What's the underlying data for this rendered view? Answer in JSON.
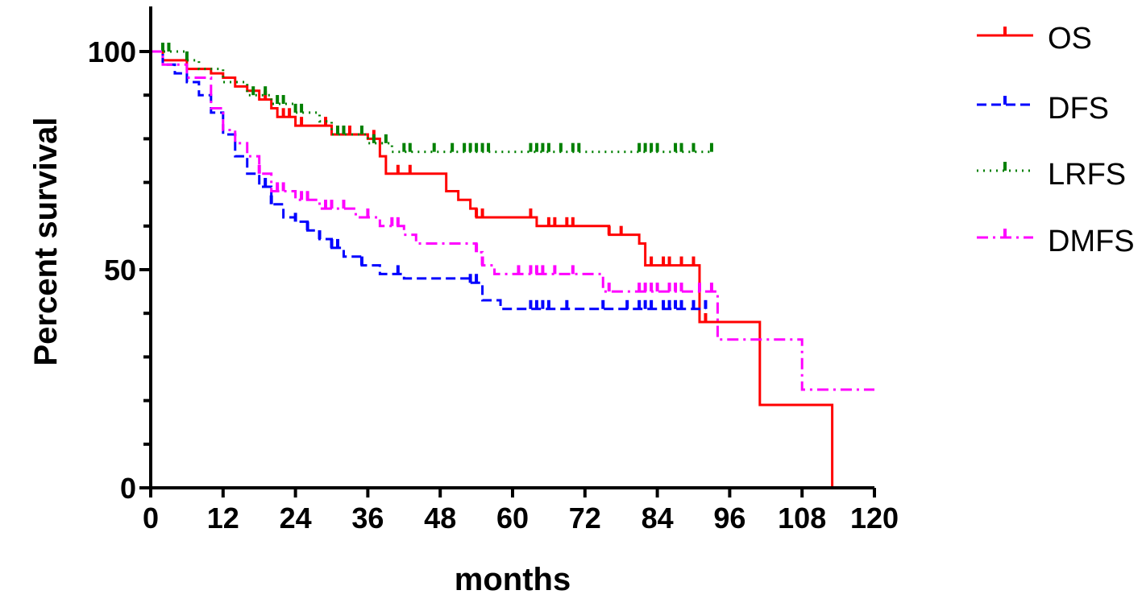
{
  "chart_data": {
    "type": "line",
    "subtype": "kaplan-meier",
    "title": "",
    "xlabel": "months",
    "ylabel": "Percent survival",
    "xlim": [
      0,
      120
    ],
    "ylim": [
      0,
      100
    ],
    "xticks": [
      0,
      12,
      24,
      36,
      48,
      60,
      72,
      84,
      96,
      108,
      120
    ],
    "yticks": [
      0,
      50,
      100
    ],
    "grid": false,
    "legend_position": "top-right",
    "series": [
      {
        "name": "OS",
        "color": "#ff0000",
        "style": "solid",
        "steps": [
          [
            0,
            100
          ],
          [
            2,
            98
          ],
          [
            6,
            96
          ],
          [
            10,
            95
          ],
          [
            12,
            94
          ],
          [
            14,
            92
          ],
          [
            16,
            91
          ],
          [
            18,
            89
          ],
          [
            20,
            87
          ],
          [
            21,
            85
          ],
          [
            24,
            83
          ],
          [
            30,
            81
          ],
          [
            36,
            80
          ],
          [
            38,
            76
          ],
          [
            39,
            72
          ],
          [
            48,
            72
          ],
          [
            49,
            68
          ],
          [
            51,
            66
          ],
          [
            53,
            64
          ],
          [
            54,
            62
          ],
          [
            63,
            62
          ],
          [
            64,
            60
          ],
          [
            75,
            60
          ],
          [
            76,
            58
          ],
          [
            81,
            56
          ],
          [
            82,
            51
          ],
          [
            91,
            51
          ],
          [
            91,
            38
          ],
          [
            101,
            38
          ],
          [
            101,
            19
          ],
          [
            113,
            19
          ],
          [
            113,
            0
          ]
        ],
        "censored": [
          19,
          22,
          23,
          25,
          29,
          31,
          32,
          33,
          37,
          41,
          43,
          54,
          55,
          63,
          66,
          67,
          69,
          70,
          76,
          78,
          83,
          85,
          86,
          88,
          90,
          92
        ]
      },
      {
        "name": "DFS",
        "color": "#0000ff",
        "style": "dashed",
        "steps": [
          [
            0,
            100
          ],
          [
            2,
            97
          ],
          [
            4,
            95
          ],
          [
            6,
            93
          ],
          [
            8,
            90
          ],
          [
            10,
            86
          ],
          [
            12,
            81
          ],
          [
            14,
            76
          ],
          [
            16,
            72
          ],
          [
            18,
            69
          ],
          [
            20,
            65
          ],
          [
            22,
            62
          ],
          [
            24,
            61
          ],
          [
            26,
            59
          ],
          [
            28,
            57
          ],
          [
            30,
            55
          ],
          [
            32,
            53
          ],
          [
            35,
            51
          ],
          [
            38,
            49
          ],
          [
            42,
            48
          ],
          [
            53,
            47
          ],
          [
            55,
            43
          ],
          [
            58,
            41
          ],
          [
            92,
            41
          ]
        ],
        "censored": [
          19,
          20,
          24,
          26,
          28,
          30,
          31,
          35,
          41,
          53,
          54,
          63,
          64,
          65,
          66,
          69,
          75,
          79,
          81,
          82,
          83,
          85,
          86,
          87,
          88,
          90,
          92
        ]
      },
      {
        "name": "LRFS",
        "color": "#008000",
        "style": "dotted",
        "steps": [
          [
            0,
            100
          ],
          [
            4,
            100
          ],
          [
            6,
            98
          ],
          [
            8,
            96
          ],
          [
            12,
            93
          ],
          [
            16,
            90
          ],
          [
            20,
            88
          ],
          [
            24,
            86
          ],
          [
            28,
            84
          ],
          [
            30,
            81
          ],
          [
            36,
            79
          ],
          [
            40,
            77
          ],
          [
            93,
            77
          ]
        ],
        "censored": [
          2,
          3,
          6,
          17,
          19,
          21,
          22,
          24,
          25,
          31,
          32,
          35,
          37,
          39,
          42,
          43,
          47,
          50,
          52,
          53,
          54,
          55,
          56,
          63,
          64,
          65,
          66,
          68,
          70,
          71,
          81,
          82,
          83,
          84,
          87,
          88,
          90,
          93
        ]
      },
      {
        "name": "DMFS",
        "color": "#ff00ff",
        "style": "dashdot",
        "steps": [
          [
            0,
            100
          ],
          [
            2,
            97
          ],
          [
            6,
            94
          ],
          [
            10,
            87
          ],
          [
            12,
            82
          ],
          [
            14,
            79
          ],
          [
            16,
            76
          ],
          [
            18,
            72
          ],
          [
            20,
            68
          ],
          [
            24,
            66
          ],
          [
            28,
            64
          ],
          [
            34,
            62
          ],
          [
            38,
            60
          ],
          [
            42,
            58
          ],
          [
            44,
            56
          ],
          [
            54,
            54
          ],
          [
            55,
            51
          ],
          [
            57,
            49
          ],
          [
            73,
            49
          ],
          [
            75,
            45
          ],
          [
            94,
            45
          ],
          [
            94,
            34
          ],
          [
            108,
            34
          ],
          [
            108,
            22.5
          ],
          [
            120,
            22.5
          ]
        ],
        "censored": [
          18,
          21,
          22,
          25,
          26,
          29,
          30,
          32,
          36,
          40,
          41,
          54,
          55,
          61,
          63,
          64,
          65,
          67,
          70,
          76,
          81,
          82,
          83,
          84,
          86,
          87,
          88,
          91,
          93
        ]
      }
    ]
  }
}
